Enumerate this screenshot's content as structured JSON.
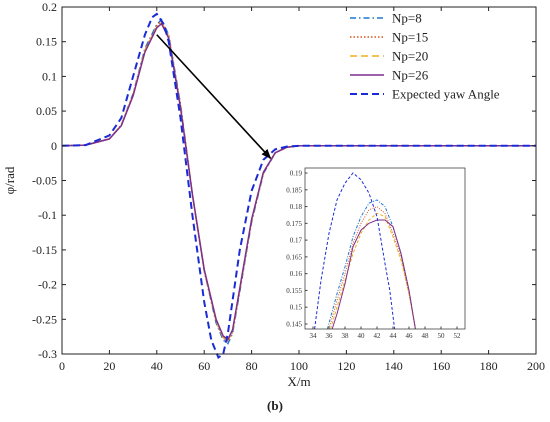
{
  "chart_data": {
    "type": "line",
    "xlabel": "X/m",
    "ylabel": "φ/rad",
    "xlim": [
      0,
      200
    ],
    "ylim": [
      -0.3,
      0.2
    ],
    "xticks": [
      0,
      20,
      40,
      60,
      80,
      100,
      120,
      140,
      160,
      180,
      200
    ],
    "yticks": [
      0.2,
      0.15,
      0.1,
      0.05,
      0,
      -0.05,
      -0.1,
      -0.15,
      -0.2,
      -0.25,
      -0.3
    ],
    "xtick_labels": [
      "0",
      "20",
      "40",
      "60",
      "80",
      "100",
      "120",
      "140",
      "160",
      "180",
      "200"
    ],
    "ytick_labels": [
      "0.2",
      "0.15",
      "0.1",
      "0.05",
      "0",
      "-0.05",
      "-0.1",
      "-0.15",
      "-0.2",
      "-0.25",
      "-0.3"
    ],
    "legend_position": "top-right",
    "grid": false,
    "series": [
      {
        "name": "Np=8",
        "color": "#1f77d0",
        "dash": "dashdot",
        "x": [
          0,
          10,
          20,
          25,
          30,
          35,
          40,
          42,
          45,
          50,
          55,
          60,
          65,
          68,
          70,
          72,
          75,
          80,
          85,
          90,
          95,
          100,
          120,
          150,
          200
        ],
        "y": [
          0,
          0.001,
          0.01,
          0.03,
          0.075,
          0.14,
          0.175,
          0.182,
          0.16,
          0.06,
          -0.07,
          -0.18,
          -0.255,
          -0.28,
          -0.285,
          -0.27,
          -0.21,
          -0.11,
          -0.04,
          -0.01,
          -0.002,
          0,
          0,
          0,
          0
        ]
      },
      {
        "name": "Np=15",
        "color": "#d9541a",
        "dash": "dotted",
        "x": [
          0,
          10,
          20,
          25,
          30,
          35,
          40,
          42,
          45,
          50,
          55,
          60,
          65,
          68,
          70,
          72,
          75,
          80,
          85,
          90,
          95,
          100,
          120,
          150,
          200
        ],
        "y": [
          0,
          0.001,
          0.01,
          0.03,
          0.074,
          0.138,
          0.173,
          0.18,
          0.158,
          0.058,
          -0.07,
          -0.18,
          -0.253,
          -0.277,
          -0.282,
          -0.268,
          -0.208,
          -0.108,
          -0.039,
          -0.01,
          -0.002,
          0,
          0,
          0,
          0
        ]
      },
      {
        "name": "Np=20",
        "color": "#edb120",
        "dash": "dashed",
        "x": [
          0,
          10,
          20,
          25,
          30,
          35,
          40,
          42,
          45,
          50,
          55,
          60,
          65,
          68,
          70,
          72,
          75,
          80,
          85,
          90,
          95,
          100,
          120,
          150,
          200
        ],
        "y": [
          0,
          0.001,
          0.01,
          0.03,
          0.073,
          0.137,
          0.171,
          0.178,
          0.157,
          0.057,
          -0.07,
          -0.179,
          -0.252,
          -0.276,
          -0.281,
          -0.267,
          -0.207,
          -0.107,
          -0.038,
          -0.01,
          -0.002,
          0,
          0,
          0,
          0
        ]
      },
      {
        "name": "Np=26",
        "color": "#7e2f8e",
        "dash": "solid",
        "x": [
          0,
          10,
          20,
          25,
          30,
          35,
          40,
          42,
          45,
          50,
          55,
          60,
          65,
          68,
          70,
          72,
          75,
          80,
          85,
          90,
          95,
          100,
          120,
          150,
          200
        ],
        "y": [
          0,
          0.001,
          0.01,
          0.029,
          0.072,
          0.135,
          0.17,
          0.176,
          0.155,
          0.055,
          -0.07,
          -0.178,
          -0.25,
          -0.274,
          -0.279,
          -0.265,
          -0.205,
          -0.106,
          -0.038,
          -0.01,
          -0.002,
          0,
          0,
          0,
          0
        ]
      },
      {
        "name": "Expected yaw Angle",
        "color": "#1a2bd6",
        "dash": "dashed",
        "x": [
          0,
          10,
          20,
          25,
          30,
          35,
          38,
          40,
          43,
          45,
          50,
          55,
          60,
          63,
          66,
          68,
          70,
          75,
          80,
          85,
          90,
          95,
          100,
          120,
          150,
          200
        ],
        "y": [
          0,
          0.001,
          0.015,
          0.04,
          0.1,
          0.16,
          0.185,
          0.19,
          0.175,
          0.15,
          0.04,
          -0.1,
          -0.225,
          -0.28,
          -0.305,
          -0.3,
          -0.27,
          -0.15,
          -0.065,
          -0.02,
          -0.005,
          -0.001,
          0,
          0,
          0,
          0
        ]
      }
    ],
    "inset": {
      "xlim": [
        33,
        53
      ],
      "ylim": [
        0.1435,
        0.1915
      ],
      "xticks": [
        34,
        36,
        38,
        40,
        42,
        44,
        46,
        48,
        50,
        52
      ],
      "yticks": [
        0.19,
        0.185,
        0.18,
        0.175,
        0.17,
        0.165,
        0.16,
        0.155,
        0.15,
        0.145
      ],
      "xtick_labels": [
        "34",
        "36",
        "38",
        "40",
        "42",
        "44",
        "46",
        "48",
        "50",
        "52"
      ],
      "ytick_labels": [
        "0.19",
        "0.185",
        "0.18",
        "0.175",
        "0.17",
        "0.165",
        "0.16",
        "0.155",
        "0.15",
        "0.145"
      ],
      "series": [
        {
          "name": "Np=8",
          "x": [
            35.8,
            37,
            38,
            39,
            40,
            41,
            42,
            43,
            44,
            45,
            46,
            46.8
          ],
          "y": [
            0.1435,
            0.154,
            0.162,
            0.171,
            0.177,
            0.181,
            0.182,
            0.18,
            0.174,
            0.166,
            0.155,
            0.1435
          ]
        },
        {
          "name": "Np=15",
          "x": [
            36.0,
            37,
            38,
            39,
            40,
            41,
            42,
            43,
            44,
            45,
            46,
            46.8
          ],
          "y": [
            0.1435,
            0.152,
            0.16,
            0.169,
            0.175,
            0.179,
            0.18,
            0.178,
            0.172,
            0.165,
            0.154,
            0.1435
          ]
        },
        {
          "name": "Np=20",
          "x": [
            36.2,
            37,
            38,
            39,
            40,
            41,
            42,
            43,
            44,
            45,
            46,
            46.8
          ],
          "y": [
            0.1435,
            0.15,
            0.158,
            0.166,
            0.172,
            0.176,
            0.178,
            0.177,
            0.171,
            0.164,
            0.154,
            0.1435
          ]
        },
        {
          "name": "Np=26",
          "x": [
            36.4,
            37,
            38,
            39,
            40,
            41,
            42,
            43,
            44,
            45,
            46,
            46.8
          ],
          "y": [
            0.1435,
            0.148,
            0.157,
            0.168,
            0.173,
            0.175,
            0.176,
            0.176,
            0.174,
            0.166,
            0.155,
            0.1435
          ]
        },
        {
          "name": "Expected yaw Angle",
          "x": [
            34.2,
            35,
            36,
            37,
            38,
            39,
            40,
            41,
            42,
            43,
            43.6,
            44.2
          ],
          "y": [
            0.1435,
            0.158,
            0.172,
            0.182,
            0.187,
            0.19,
            0.188,
            0.184,
            0.177,
            0.163,
            0.155,
            0.1435
          ]
        }
      ]
    },
    "annotation": {
      "type": "arrow",
      "from": [
        40,
        0.16
      ],
      "to": [
        88,
        -0.018
      ]
    }
  },
  "panel_label": "(b)"
}
